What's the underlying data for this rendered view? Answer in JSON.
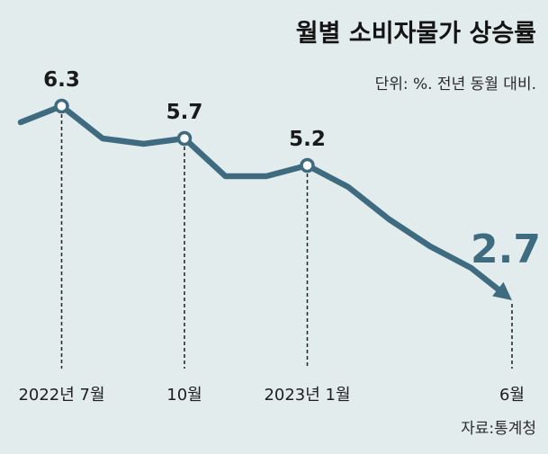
{
  "chart_data": {
    "type": "line",
    "title": "월별 소비자물가 상승률",
    "subtitle": "단위: %. 전년 동월 대비.",
    "source": "자료:통계청",
    "x": [
      "2022-06",
      "2022-07",
      "2022-08",
      "2022-09",
      "2022-10",
      "2022-11",
      "2022-12",
      "2023-01",
      "2023-02",
      "2023-03",
      "2023-04",
      "2023-05",
      "2023-06"
    ],
    "y": [
      6.0,
      6.3,
      5.7,
      5.6,
      5.7,
      5.0,
      5.0,
      5.2,
      4.8,
      4.2,
      3.7,
      3.3,
      2.7
    ],
    "tick_labels": [
      {
        "x": "2022-07",
        "label": "2022년 7월"
      },
      {
        "x": "2022-10",
        "label": "10월"
      },
      {
        "x": "2023-01",
        "label": "2023년 1월"
      },
      {
        "x": "2023-06",
        "label": "6월"
      }
    ],
    "data_labels": [
      {
        "x": "2022-07",
        "label": "6.3"
      },
      {
        "x": "2022-10",
        "label": "5.7"
      },
      {
        "x": "2023-01",
        "label": "5.2"
      },
      {
        "x": "2023-06",
        "label": "2.7"
      }
    ],
    "line_color": "#3e6b80",
    "background_color": "#e3eced",
    "grid": false,
    "legend": "none"
  }
}
